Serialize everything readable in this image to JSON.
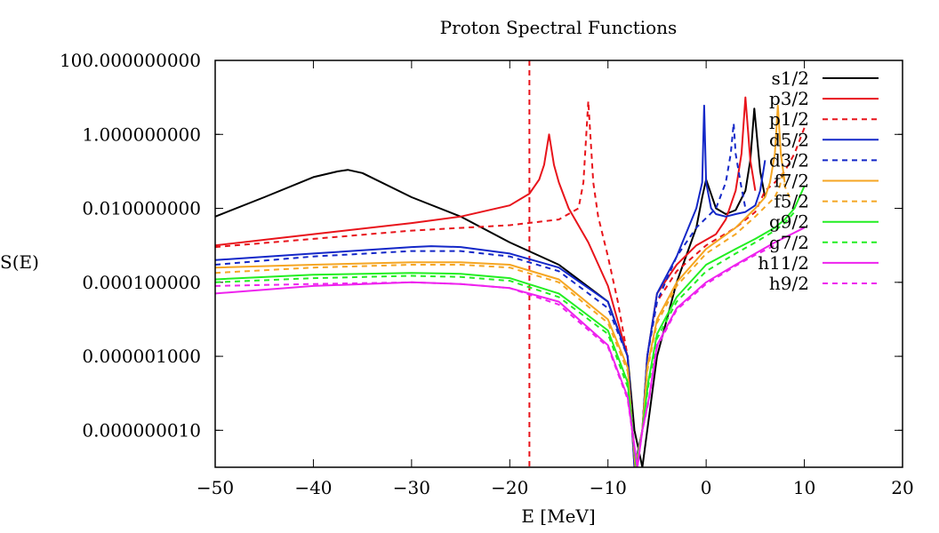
{
  "chart_data": {
    "type": "line",
    "title": "Proton Spectral Functions",
    "xlabel": "E [MeV]",
    "ylabel": "S(E)",
    "xlim": [
      -50,
      20
    ],
    "ylim": [
      1e-09,
      100
    ],
    "y_scale": "log",
    "legend_position": "top-right",
    "x_ticks": [
      -50,
      -40,
      -30,
      -20,
      -10,
      0,
      10,
      20
    ],
    "x_tick_labels": [
      "−50",
      "−40",
      "−30",
      "−20",
      "−10",
      "0",
      "10",
      "20"
    ],
    "y_ticks": [
      100,
      1,
      0.01,
      0.0001,
      1e-06,
      1e-08
    ],
    "y_tick_labels": [
      "100.000000000",
      "1.000000000",
      "0.010000000",
      "0.000100000",
      "0.000001000",
      "0.000000010"
    ],
    "colors": {
      "black": "#000000",
      "red": "#e8141b",
      "blue": "#1428c8",
      "orange": "#f5a623",
      "green": "#22ee22",
      "magenta": "#ee22ee"
    },
    "series": [
      {
        "name": "s1/2",
        "color": "#000000",
        "dash": "solid",
        "x": [
          -50,
          -45,
          -40,
          -37.5,
          -36.5,
          -35,
          -30,
          -25,
          -20,
          -15,
          -10,
          -8,
          -7.3,
          -6.5,
          -6,
          -5,
          -3,
          -1,
          -0.4,
          0,
          1,
          2,
          3,
          4,
          4.5,
          4.9,
          5.5,
          6
        ],
        "y": [
          0.006,
          0.02,
          0.07,
          0.1,
          0.11,
          0.09,
          0.02,
          0.006,
          0.0012,
          0.0003,
          3e-05,
          1e-06,
          1e-08,
          1e-09,
          1e-08,
          1e-06,
          0.0001,
          0.003,
          0.02,
          0.06,
          0.01,
          0.007,
          0.009,
          0.03,
          0.2,
          5,
          0.1,
          0.02
        ]
      },
      {
        "name": "p3/2",
        "color": "#e8141b",
        "dash": "solid",
        "x": [
          -50,
          -40,
          -30,
          -25,
          -20,
          -18,
          -17,
          -16.5,
          -16,
          -15.5,
          -15,
          -14,
          -12,
          -10,
          -8,
          -7.3,
          -6.5,
          -6,
          -5,
          -3,
          -1,
          1,
          2,
          3,
          3.6,
          4,
          4.5,
          5
        ],
        "y": [
          0.001,
          0.002,
          0.004,
          0.006,
          0.012,
          0.025,
          0.06,
          0.15,
          1,
          0.15,
          0.05,
          0.01,
          0.0012,
          8e-05,
          1e-06,
          1e-09,
          1e-08,
          1e-06,
          5e-05,
          0.0003,
          0.001,
          0.002,
          0.005,
          0.03,
          0.3,
          10,
          0.2,
          0.03
        ]
      },
      {
        "name": "p1/2",
        "color": "#e8141b",
        "dash": "dashed",
        "x": [
          -50,
          -40,
          -30,
          -20,
          -15,
          -13,
          -12.5,
          -12,
          -11.5,
          -11,
          -10,
          -9,
          -8,
          -7.2,
          -6.5,
          -6,
          -5,
          -3,
          0,
          3,
          5,
          6,
          7,
          8,
          9,
          10
        ],
        "y": [
          0.0009,
          0.0015,
          0.0025,
          0.0035,
          0.005,
          0.01,
          0.05,
          8,
          0.05,
          0.006,
          0.0005,
          3e-05,
          1e-06,
          1e-09,
          1e-08,
          1e-06,
          3e-05,
          0.0002,
          0.001,
          0.003,
          0.008,
          0.03,
          0.05,
          0.1,
          0.3,
          1.5
        ]
      },
      {
        "name": "d5/2",
        "color": "#1428c8",
        "dash": "solid",
        "x": [
          -50,
          -40,
          -30,
          -28,
          -25,
          -20,
          -15,
          -10,
          -8,
          -7.3,
          -6.5,
          -6,
          -5,
          -3,
          -1,
          -0.4,
          -0.2,
          0,
          0.5,
          1,
          2,
          3,
          4,
          5,
          5.5,
          6
        ],
        "y": [
          0.0004,
          0.0006,
          0.0009,
          0.00095,
          0.0009,
          0.0006,
          0.00025,
          3e-05,
          1e-06,
          1e-09,
          1e-08,
          1e-06,
          5e-05,
          0.0005,
          0.01,
          0.05,
          6,
          0.05,
          0.01,
          0.007,
          0.006,
          0.007,
          0.008,
          0.012,
          0.03,
          0.2
        ]
      },
      {
        "name": "d3/2",
        "color": "#1428c8",
        "dash": "dashed",
        "x": [
          -50,
          -40,
          -30,
          -25,
          -20,
          -15,
          -10,
          -8,
          -7.2,
          -6.5,
          -6,
          -5,
          -3,
          -1,
          1,
          2,
          2.5,
          2.8,
          3,
          3.5,
          4
        ],
        "y": [
          0.0003,
          0.0005,
          0.0007,
          0.0007,
          0.0005,
          0.0002,
          2e-05,
          1e-06,
          1e-09,
          1e-08,
          1e-06,
          3e-05,
          0.0005,
          0.003,
          0.01,
          0.05,
          0.3,
          2,
          0.3,
          0.05,
          0.01
        ]
      },
      {
        "name": "f7/2",
        "color": "#f5a623",
        "dash": "solid",
        "x": [
          -50,
          -40,
          -30,
          -25,
          -20,
          -15,
          -10,
          -8,
          -7.2,
          -6.5,
          -6,
          -5,
          -3,
          0,
          3,
          5,
          6,
          6.5,
          7,
          7.3,
          7.6,
          8
        ],
        "y": [
          0.00025,
          0.0003,
          0.00035,
          0.00035,
          0.0003,
          0.00012,
          1e-05,
          5e-07,
          1e-09,
          1e-08,
          5e-07,
          1e-05,
          0.0001,
          0.0008,
          0.003,
          0.01,
          0.02,
          0.05,
          0.3,
          6,
          0.3,
          0.05
        ]
      },
      {
        "name": "f5/2",
        "color": "#f5a623",
        "dash": "dashed",
        "x": [
          -50,
          -40,
          -30,
          -25,
          -20,
          -15,
          -10,
          -8,
          -7.2,
          -6.5,
          -6,
          -5,
          -3,
          0,
          3,
          5,
          7,
          7.5,
          7.8,
          8,
          8.5
        ],
        "y": [
          0.00018,
          0.00025,
          0.0003,
          0.0003,
          0.00025,
          0.0001,
          8e-06,
          4e-07,
          1e-09,
          1e-08,
          4e-07,
          8e-06,
          8e-05,
          0.0006,
          0.002,
          0.006,
          0.02,
          0.04,
          0.1,
          0.04,
          0.02
        ]
      },
      {
        "name": "g9/2",
        "color": "#22ee22",
        "dash": "solid",
        "x": [
          -50,
          -40,
          -30,
          -25,
          -20,
          -15,
          -10,
          -8,
          -7.1,
          -6.5,
          -5.9,
          -5,
          -3,
          0,
          3,
          5,
          7,
          8,
          9,
          9.5,
          10
        ],
        "y": [
          0.00012,
          0.00016,
          0.00018,
          0.00017,
          0.00013,
          5e-05,
          5e-06,
          2e-07,
          1e-09,
          1e-08,
          2e-07,
          4e-06,
          4e-05,
          0.0003,
          0.0008,
          0.0015,
          0.003,
          0.005,
          0.01,
          0.02,
          0.04
        ]
      },
      {
        "name": "g7/2",
        "color": "#22ee22",
        "dash": "dashed",
        "x": [
          -50,
          -40,
          -30,
          -25,
          -20,
          -15,
          -10,
          -8,
          -7.1,
          -6.5,
          -5.9,
          -5,
          -3,
          0,
          3,
          5,
          7,
          8,
          9
        ],
        "y": [
          0.0001,
          0.00013,
          0.00015,
          0.00014,
          0.00011,
          4e-05,
          4e-06,
          1.5e-07,
          1e-09,
          1e-08,
          1.5e-07,
          3e-06,
          3e-05,
          0.0002,
          0.0006,
          0.0012,
          0.0025,
          0.004,
          0.008
        ]
      },
      {
        "name": "h11/2",
        "color": "#ee22ee",
        "dash": "solid",
        "x": [
          -50,
          -40,
          -30,
          -25,
          -20,
          -15,
          -10,
          -8,
          -7.0,
          -6.5,
          -5.8,
          -5,
          -3,
          0,
          3,
          5,
          7,
          10
        ],
        "y": [
          5e-05,
          8e-05,
          0.0001,
          9e-05,
          7e-05,
          3e-05,
          2e-06,
          8e-08,
          1e-09,
          1e-08,
          8e-08,
          2e-06,
          2e-05,
          0.0001,
          0.0003,
          0.0006,
          0.0012,
          0.003
        ]
      },
      {
        "name": "h9/2",
        "color": "#ee22ee",
        "dash": "dashed",
        "x": [
          -50,
          -40,
          -30,
          -25,
          -20,
          -15,
          -10,
          -8,
          -7.0,
          -6.5,
          -5.8,
          -5,
          -3,
          0,
          3,
          5,
          7
        ],
        "y": [
          8e-05,
          9e-05,
          0.0001,
          9e-05,
          7e-05,
          2.5e-05,
          1.8e-06,
          7e-08,
          1e-09,
          1e-08,
          7e-08,
          1.8e-06,
          1.8e-05,
          9e-05,
          0.00028,
          0.00055,
          0.001
        ]
      }
    ],
    "vertical_line": {
      "x": -18,
      "color": "#e8141b",
      "dash": "dashed"
    }
  }
}
